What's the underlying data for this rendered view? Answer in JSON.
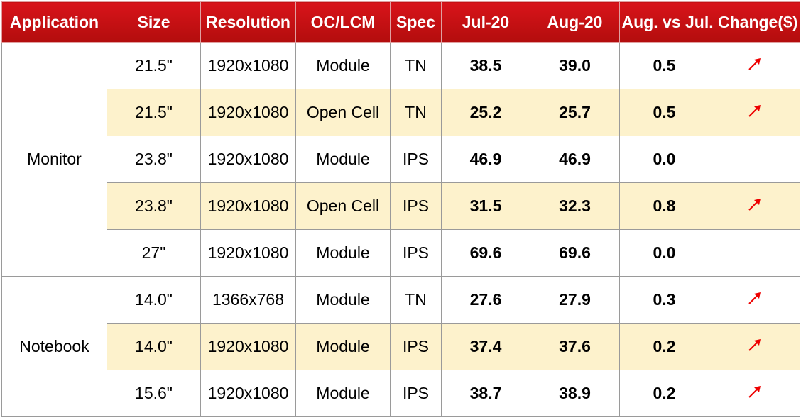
{
  "header": [
    "Application",
    "Size",
    "Resolution",
    "OC/LCM",
    "Spec",
    "Jul-20",
    "Aug-20",
    "Aug. vs Jul. Change($)"
  ],
  "groups": [
    {
      "application": "Monitor",
      "rows": [
        [
          "21.5\"",
          "1920x1080",
          "Module",
          "TN",
          "38.5",
          "39.0",
          "0.5"
        ],
        [
          "21.5\"",
          "1920x1080",
          "Open Cell",
          "TN",
          "25.2",
          "25.7",
          "0.5"
        ],
        [
          "23.8\"",
          "1920x1080",
          "Module",
          "IPS",
          "46.9",
          "46.9",
          "0.0"
        ],
        [
          "23.8\"",
          "1920x1080",
          "Open Cell",
          "IPS",
          "31.5",
          "32.3",
          "0.8"
        ],
        [
          "27\"",
          "1920x1080",
          "Module",
          "IPS",
          "69.6",
          "69.6",
          "0.0"
        ]
      ]
    },
    {
      "application": "Notebook",
      "rows": [
        [
          "14.0\"",
          "1366x768",
          "Module",
          "TN",
          "27.6",
          "27.9",
          "0.3"
        ],
        [
          "14.0\"",
          "1920x1080",
          "Module",
          "IPS",
          "37.4",
          "37.6",
          "0.2"
        ],
        [
          "15.6\"",
          "1920x1080",
          "Module",
          "IPS",
          "38.7",
          "38.9",
          "0.2"
        ]
      ]
    }
  ]
}
